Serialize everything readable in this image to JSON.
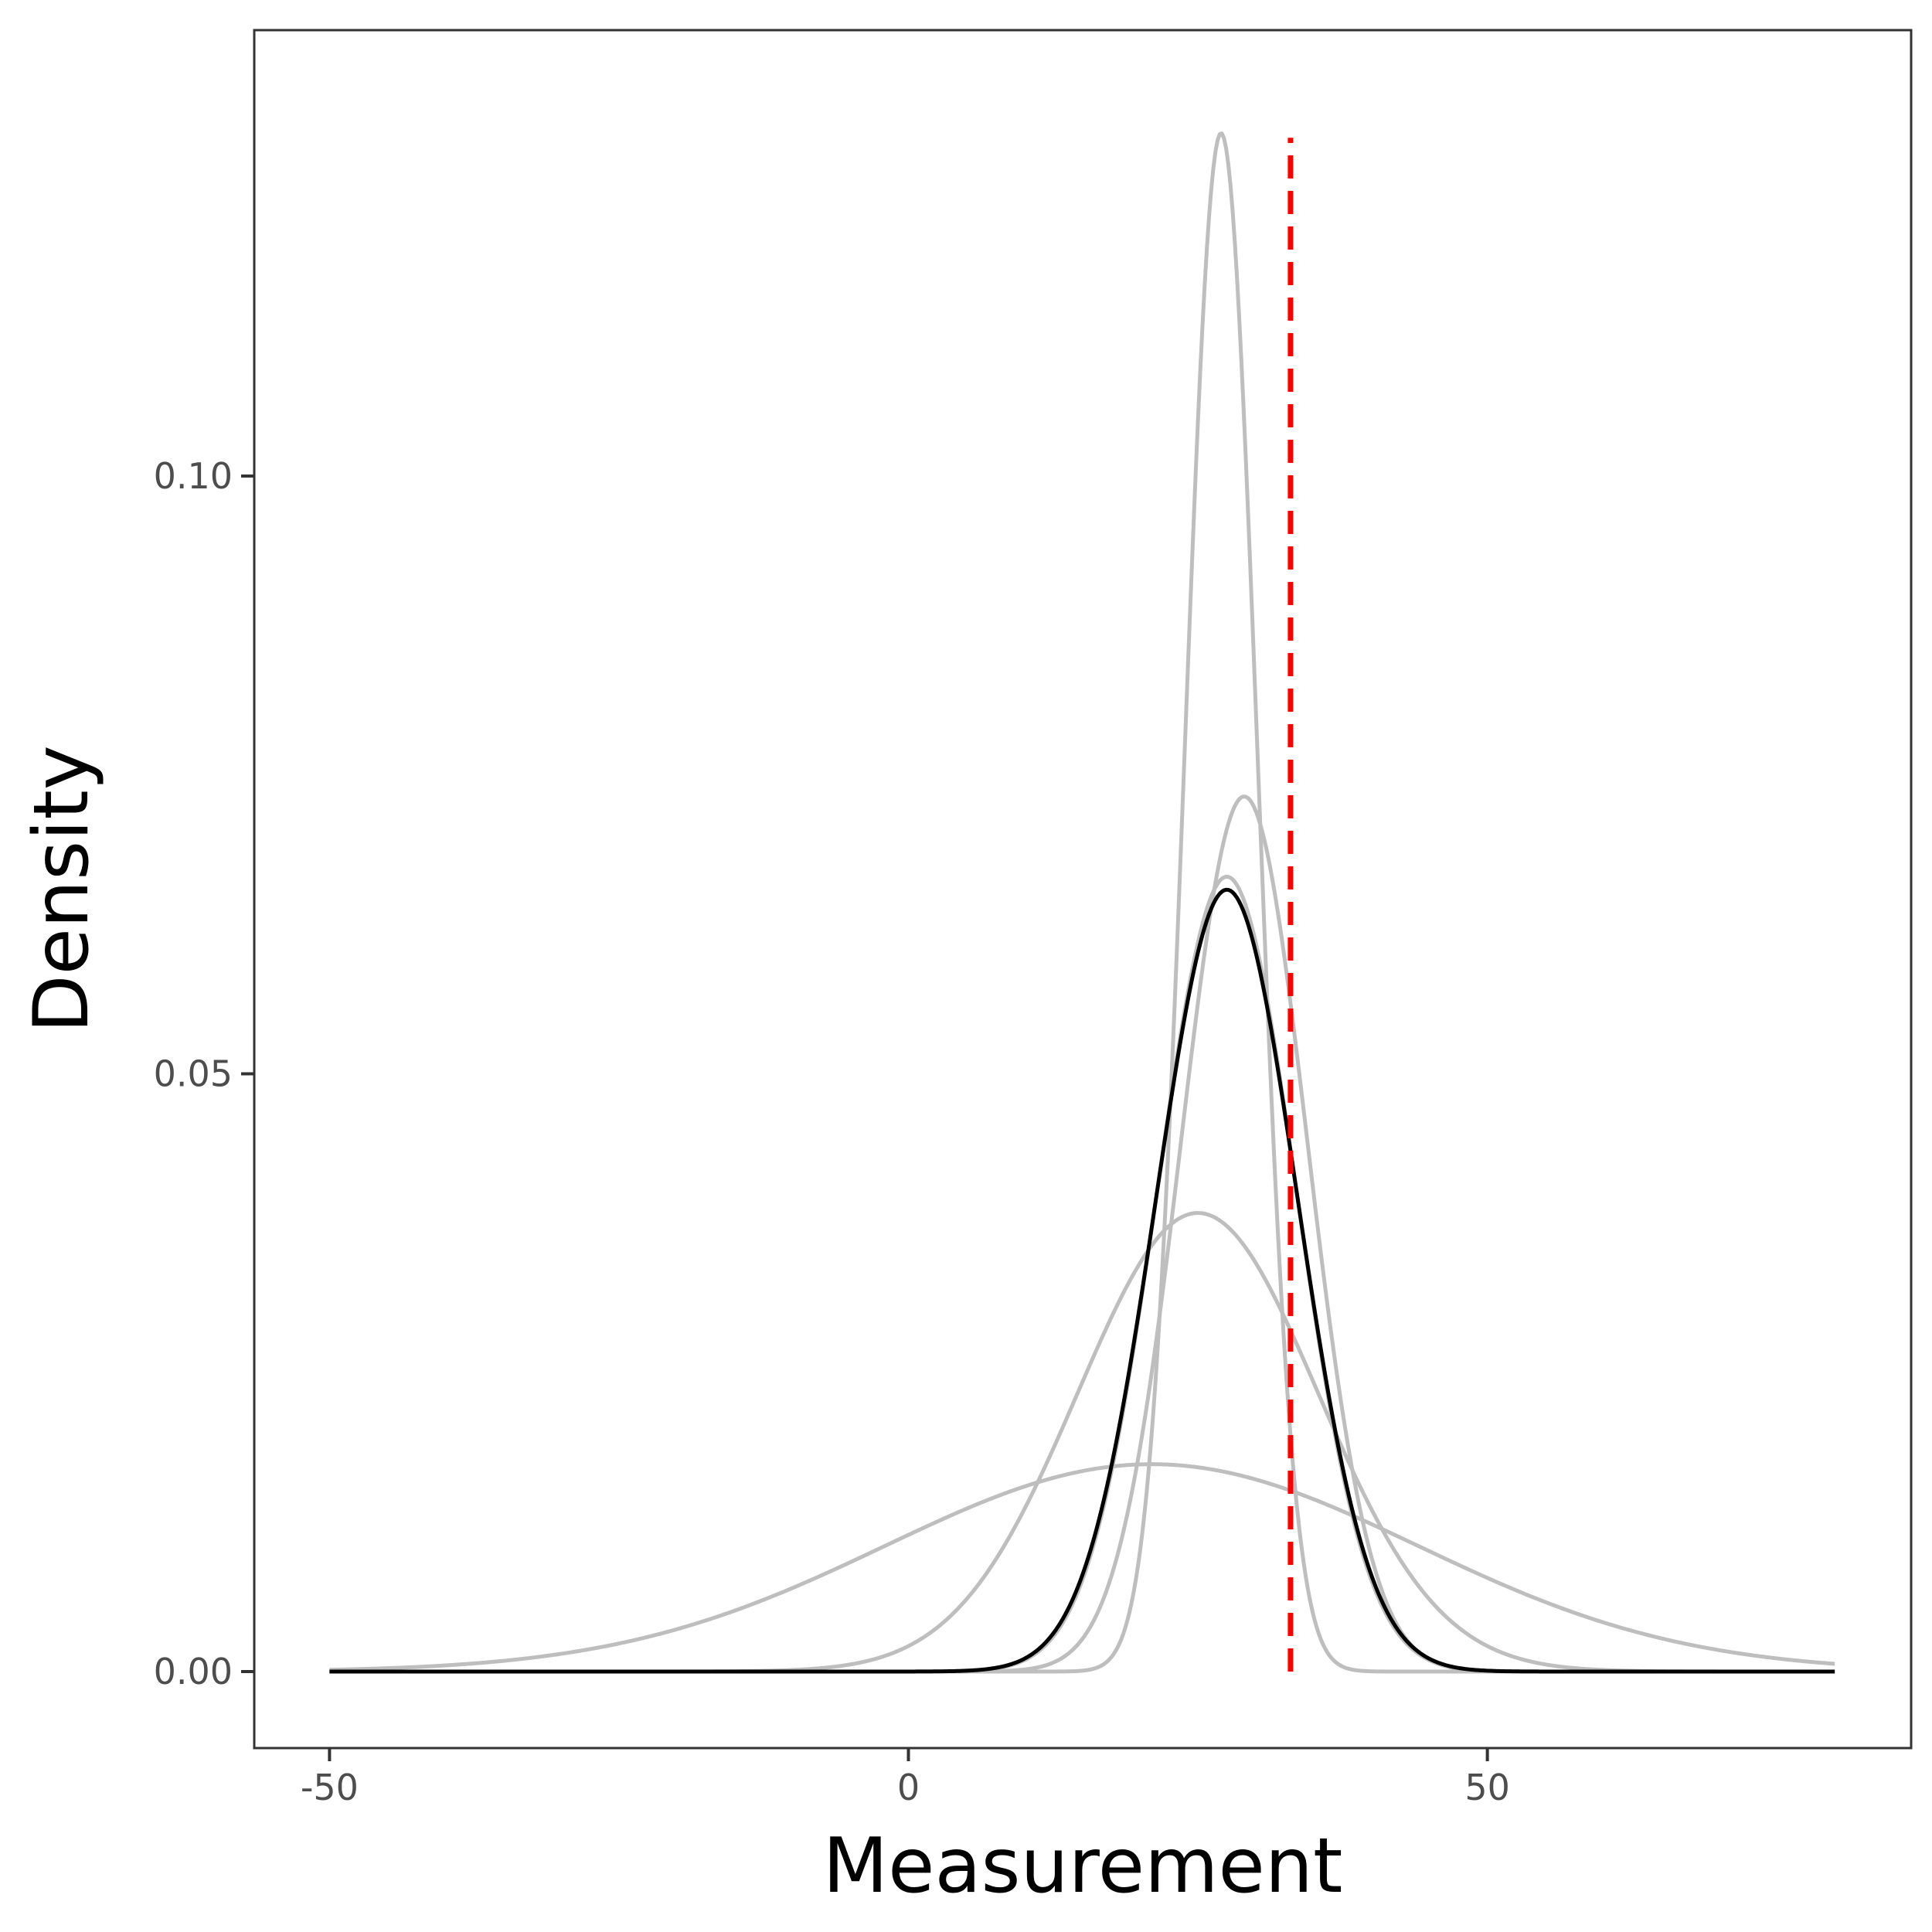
{
  "chart_data": {
    "type": "line",
    "xlabel": "Measurement",
    "ylabel": "Density",
    "xlim": [
      -56.5,
      86.6
    ],
    "ylim": [
      -0.0064,
      0.1373
    ],
    "x_ticks": [
      -50,
      0,
      50
    ],
    "x_tick_labels": [
      "-50",
      "0",
      "50"
    ],
    "y_ticks": [
      0.0,
      0.05,
      0.1
    ],
    "y_tick_labels": [
      "0.00",
      "0.05",
      "0.10"
    ],
    "grid": false,
    "legend": "none",
    "x_range": [
      -50,
      80
    ],
    "series": [
      {
        "distribution": "normal",
        "mean": 27,
        "sd": 3.1,
        "color": "#bebebe"
      },
      {
        "distribution": "normal",
        "mean": 29,
        "sd": 5.45,
        "color": "#bebebe"
      },
      {
        "distribution": "normal",
        "mean": 27.5,
        "sd": 6.0,
        "color": "#bebebe"
      },
      {
        "distribution": "normal",
        "mean": 25,
        "sd": 10.4,
        "color": "#bebebe"
      },
      {
        "distribution": "normal",
        "mean": 21,
        "sd": 23.0,
        "color": "#bebebe"
      },
      {
        "distribution": "normal",
        "mean": 27.5,
        "sd": 6.1,
        "color": "#000000"
      }
    ],
    "reference_line": {
      "x": 33,
      "y_end": 0.1283,
      "color": "#ff0000",
      "style": "dashed"
    }
  }
}
